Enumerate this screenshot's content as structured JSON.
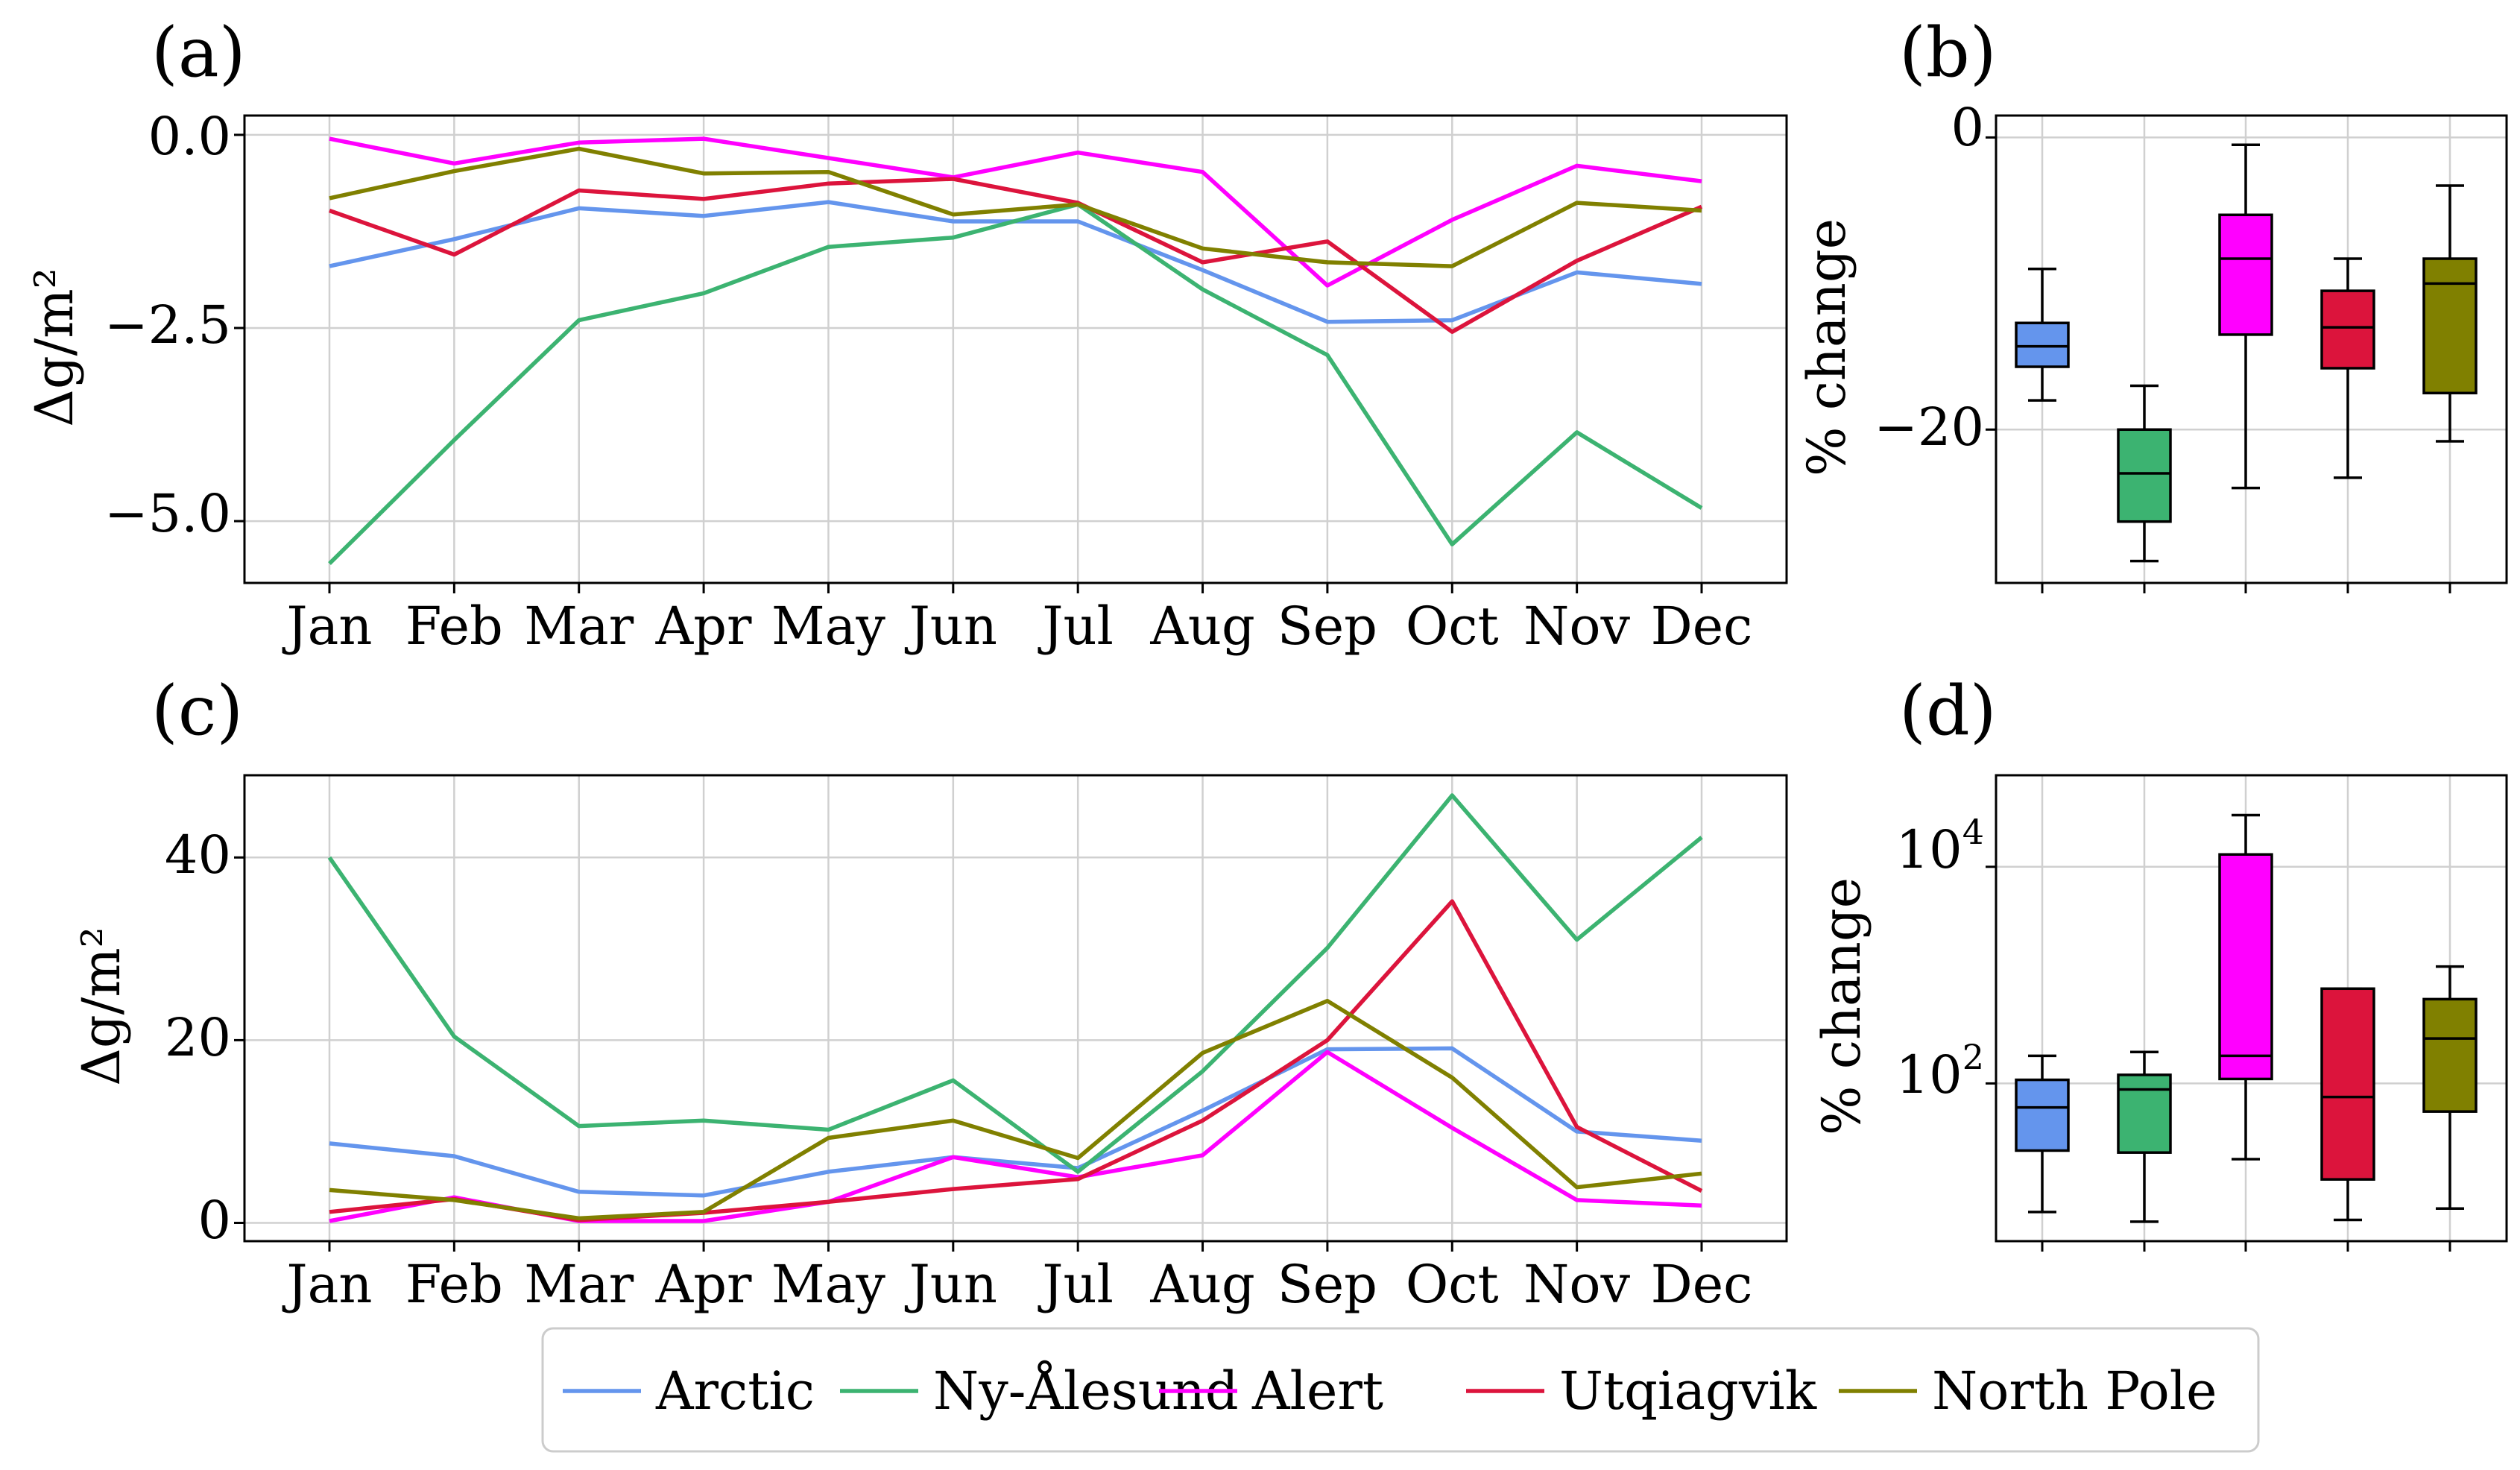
{
  "panels": {
    "a": {
      "label": "(a)",
      "ylabel": "Δg/m²",
      "yticks": [
        "0.0",
        "−2.5",
        "−5.0"
      ]
    },
    "b": {
      "label": "(b)",
      "ylabel": "% change",
      "yticks": [
        "0",
        "−20"
      ]
    },
    "c": {
      "label": "(c)",
      "ylabel": "Δg/m²",
      "yticks": [
        "40",
        "20",
        "0"
      ]
    },
    "d": {
      "label": "(d)",
      "ylabel": "% change",
      "yticks": [
        "10",
        "10"
      ],
      "ytick_exponents": [
        "4",
        "2"
      ]
    }
  },
  "months": [
    "Jan",
    "Feb",
    "Mar",
    "Apr",
    "May",
    "Jun",
    "Jul",
    "Aug",
    "Sep",
    "Oct",
    "Nov",
    "Dec"
  ],
  "legend": [
    "Arctic",
    "Ny-Ålesund",
    "Alert",
    "Utqiagvik",
    "North Pole"
  ],
  "colors": [
    "#6495ed",
    "#3cb371",
    "#ff00ff",
    "#dc143c",
    "#808000"
  ],
  "chart_data": [
    {
      "panel": "a",
      "type": "line",
      "x": [
        "Jan",
        "Feb",
        "Mar",
        "Apr",
        "May",
        "Jun",
        "Jul",
        "Aug",
        "Sep",
        "Oct",
        "Nov",
        "Dec"
      ],
      "xlabel": "",
      "ylabel": "Δg/m²",
      "ylim": [
        -5.8,
        0.25
      ],
      "grid": true,
      "series": [
        {
          "name": "Arctic",
          "values": [
            -1.7,
            -1.35,
            -0.95,
            -1.05,
            -0.87,
            -1.12,
            -1.12,
            -1.75,
            -2.42,
            -2.4,
            -1.78,
            -1.93
          ]
        },
        {
          "name": "Ny-Ålesund",
          "values": [
            -5.55,
            -3.95,
            -2.4,
            -2.05,
            -1.45,
            -1.33,
            -0.9,
            -2.0,
            -2.85,
            -5.3,
            -3.85,
            -4.83
          ]
        },
        {
          "name": "Alert",
          "values": [
            -0.05,
            -0.37,
            -0.1,
            -0.05,
            -0.3,
            -0.55,
            -0.23,
            -0.48,
            -1.95,
            -1.1,
            -0.4,
            -0.6
          ]
        },
        {
          "name": "Utqiagvik",
          "values": [
            -0.98,
            -1.55,
            -0.72,
            -0.83,
            -0.63,
            -0.57,
            -0.88,
            -1.65,
            -1.38,
            -2.55,
            -1.63,
            -0.93
          ]
        },
        {
          "name": "North Pole",
          "values": [
            -0.82,
            -0.47,
            -0.18,
            -0.5,
            -0.48,
            -1.03,
            -0.9,
            -1.47,
            -1.65,
            -1.7,
            -0.88,
            -0.98
          ]
        }
      ]
    },
    {
      "panel": "b",
      "type": "box",
      "ylabel": "% change",
      "ylim": [
        -30.5,
        1.5
      ],
      "grid": true,
      "categories": [
        "Arctic",
        "Ny-Ålesund",
        "Alert",
        "Utqiagvik",
        "North Pole"
      ],
      "boxes": [
        {
          "whisker_low": -18.0,
          "q1": -15.7,
          "median": -14.3,
          "q3": -12.7,
          "whisker_high": -9.0
        },
        {
          "whisker_low": -29.0,
          "q1": -26.3,
          "median": -23.0,
          "q3": -20.0,
          "whisker_high": -17.0
        },
        {
          "whisker_low": -24.0,
          "q1": -13.5,
          "median": -8.3,
          "q3": -5.3,
          "whisker_high": -0.5
        },
        {
          "whisker_low": -23.3,
          "q1": -15.8,
          "median": -13.0,
          "q3": -10.5,
          "whisker_high": -8.3
        },
        {
          "whisker_low": -20.8,
          "q1": -17.5,
          "median": -10.0,
          "q3": -8.3,
          "whisker_high": -3.3
        }
      ]
    },
    {
      "panel": "c",
      "type": "line",
      "x": [
        "Jan",
        "Feb",
        "Mar",
        "Apr",
        "May",
        "Jun",
        "Jul",
        "Aug",
        "Sep",
        "Oct",
        "Nov",
        "Dec"
      ],
      "xlabel": "",
      "ylabel": "Δg/m²",
      "ylim": [
        -2.0,
        49.0
      ],
      "grid": true,
      "series": [
        {
          "name": "Arctic",
          "values": [
            8.7,
            7.3,
            3.4,
            3.0,
            5.6,
            7.2,
            6.0,
            12.3,
            19.0,
            19.1,
            10.0,
            9.0
          ]
        },
        {
          "name": "Ny-Ålesund",
          "values": [
            40.0,
            20.4,
            10.6,
            11.2,
            10.2,
            15.6,
            5.6,
            16.6,
            30.1,
            46.8,
            31.0,
            42.2
          ]
        },
        {
          "name": "Alert",
          "values": [
            0.2,
            2.8,
            0.2,
            0.2,
            2.3,
            7.2,
            5.0,
            7.4,
            18.7,
            10.4,
            2.5,
            1.9
          ]
        },
        {
          "name": "Utqiagvik",
          "values": [
            1.2,
            2.6,
            0.3,
            1.1,
            2.3,
            3.7,
            4.8,
            11.2,
            20.0,
            35.2,
            10.5,
            3.5
          ]
        },
        {
          "name": "North Pole",
          "values": [
            3.6,
            2.5,
            0.5,
            1.2,
            9.3,
            11.2,
            7.1,
            18.6,
            24.3,
            15.9,
            3.9,
            5.4
          ]
        }
      ]
    },
    {
      "panel": "d",
      "type": "box",
      "ylabel": "% change",
      "yscale": "log",
      "ylim": [
        3.5,
        70000
      ],
      "grid": true,
      "categories": [
        "Arctic",
        "Ny-Ålesund",
        "Alert",
        "Utqiagvik",
        "North Pole"
      ],
      "boxes": [
        {
          "whisker_low": 6.5,
          "q1": 24,
          "median": 60,
          "q3": 108,
          "whisker_high": 180
        },
        {
          "whisker_low": 5.3,
          "q1": 23,
          "median": 88,
          "q3": 120,
          "whisker_high": 195
        },
        {
          "whisker_low": 20,
          "q1": 110,
          "median": 180,
          "q3": 13000,
          "whisker_high": 30000
        },
        {
          "whisker_low": 5.5,
          "q1": 13,
          "median": 75,
          "q3": 750,
          "whisker_high": 750
        },
        {
          "whisker_low": 7,
          "q1": 55,
          "median": 260,
          "q3": 600,
          "whisker_high": 1200
        }
      ]
    }
  ]
}
